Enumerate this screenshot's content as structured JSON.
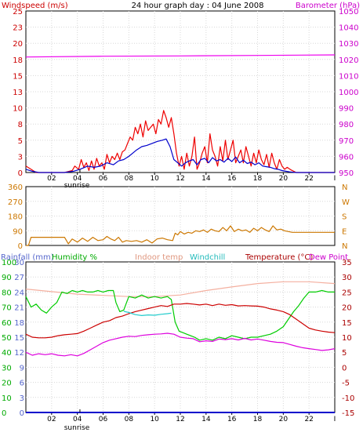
{
  "chart_data": [
    {
      "panel": "wind",
      "type": "line",
      "title": "24 hour graph day : 04 June 2008",
      "left_axis_label": "Windspeed (m/s)",
      "right_axis_label": "Barometer (hPa)",
      "left_ticks": [
        0,
        3,
        5,
        8,
        10,
        13,
        15,
        18,
        20,
        23,
        25
      ],
      "right_ticks": [
        950,
        960,
        970,
        980,
        990,
        1000,
        1010,
        1020,
        1030,
        1040,
        1050
      ],
      "ylim_left": [
        0,
        25
      ],
      "ylim_right": [
        950,
        1050
      ],
      "x_ticks": [
        "02",
        "04",
        "06",
        "08",
        "10",
        "12",
        "14",
        "16",
        "18",
        "20",
        "22"
      ],
      "x_last_tick": "I",
      "xlim": [
        0,
        24
      ],
      "sunrise_label": "sunrise",
      "sunrise_hour": 4.2,
      "series": [
        {
          "key": "gust",
          "color": "#ee0000",
          "x": [
            0,
            0.4,
            0.8,
            2,
            3,
            3.6,
            3.8,
            4.1,
            4.3,
            4.5,
            4.7,
            4.9,
            5.1,
            5.3,
            5.5,
            5.7,
            5.9,
            6.1,
            6.3,
            6.5,
            6.7,
            6.9,
            7.1,
            7.3,
            7.5,
            7.7,
            7.9,
            8.1,
            8.3,
            8.5,
            8.7,
            8.9,
            9.1,
            9.3,
            9.5,
            9.7,
            9.9,
            10.1,
            10.3,
            10.5,
            10.7,
            10.9,
            11.1,
            11.3,
            11.5,
            11.7,
            11.9,
            12.1,
            12.3,
            12.5,
            12.7,
            12.9,
            13.1,
            13.3,
            13.5,
            13.7,
            13.9,
            14.1,
            14.3,
            14.5,
            14.7,
            14.9,
            15.1,
            15.3,
            15.5,
            15.7,
            15.9,
            16.1,
            16.3,
            16.5,
            16.7,
            16.9,
            17.1,
            17.3,
            17.5,
            17.7,
            17.9,
            18.1,
            18.3,
            18.5,
            18.7,
            18.9,
            19.1,
            19.3,
            19.5,
            19.7,
            19.9,
            20.1,
            20.3,
            20.6,
            21,
            22,
            23.5,
            24
          ],
          "y": [
            1,
            0.5,
            0,
            0,
            0,
            0.3,
            1,
            0.5,
            2,
            0.8,
            1.5,
            0.3,
            1.8,
            0.5,
            2.2,
            1,
            1.5,
            0.5,
            2.8,
            1.5,
            2.5,
            2,
            3,
            2,
            3.2,
            3.5,
            4.5,
            5.5,
            5,
            7,
            6,
            7.5,
            5.5,
            8,
            6.5,
            7,
            7.5,
            6,
            8.2,
            7.5,
            9.6,
            8.5,
            7,
            8.5,
            6,
            3,
            1,
            2.5,
            0.5,
            3,
            1,
            2.5,
            5.5,
            0.5,
            1.5,
            3,
            4,
            1.5,
            6,
            3.5,
            2.5,
            1,
            4,
            1.8,
            5,
            2,
            3.5,
            5,
            1.5,
            2.5,
            3.5,
            1.5,
            4,
            2.5,
            1,
            3,
            1.5,
            3.5,
            2,
            1.2,
            2.8,
            0.8,
            3,
            1.5,
            0.5,
            2,
            1,
            0.5,
            0.8,
            0.4,
            0,
            0,
            0,
            0
          ]
        },
        {
          "key": "average",
          "color": "#0000cc",
          "x": [
            0,
            0.5,
            1,
            2,
            3,
            3.7,
            4.2,
            4.8,
            5.3,
            5.8,
            6.3,
            6.8,
            7.2,
            7.6,
            8,
            8.3,
            8.6,
            9,
            9.4,
            9.8,
            10.2,
            10.6,
            10.9,
            11.2,
            11.5,
            11.8,
            12.1,
            12.4,
            12.7,
            13,
            13.3,
            13.6,
            13.9,
            14.2,
            14.5,
            14.8,
            15.1,
            15.4,
            15.7,
            16,
            16.3,
            16.6,
            16.9,
            17.2,
            17.5,
            17.8,
            18.1,
            18.4,
            18.7,
            19,
            19.3,
            19.6,
            19.9,
            20.2,
            20.5,
            21,
            22,
            23.5,
            24
          ],
          "y": [
            0.5,
            0.2,
            0,
            0,
            0,
            0.2,
            0.5,
            1,
            0.8,
            1,
            1.5,
            1.2,
            1.8,
            2,
            2.5,
            3,
            3.5,
            4,
            4.2,
            4.5,
            4.8,
            5,
            5.2,
            4,
            2,
            1.5,
            1,
            1.5,
            1.8,
            2,
            1.2,
            2,
            2.2,
            1.5,
            2.3,
            1.8,
            2,
            1.6,
            2.2,
            1.7,
            2.4,
            1.5,
            1.9,
            1.4,
            1.6,
            1.2,
            1.5,
            1,
            0.9,
            0.8,
            0.6,
            0.5,
            0.3,
            0.2,
            0.1,
            0,
            0,
            0,
            0
          ]
        },
        {
          "key": "barometer",
          "color": "#ee00ee",
          "axis": "right",
          "x": [
            0,
            6,
            12,
            18,
            24
          ],
          "y": [
            1021.5,
            1022,
            1022.2,
            1022.5,
            1022.8
          ]
        }
      ]
    },
    {
      "panel": "direction",
      "type": "line",
      "left_ticks": [
        0,
        90,
        180,
        270,
        360
      ],
      "right_ticks": [
        "N",
        "E",
        "S",
        "W",
        "N"
      ],
      "ylim": [
        0,
        360
      ],
      "series": [
        {
          "key": "direction",
          "color": "#cc7700",
          "x": [
            0,
            0.2,
            0.4,
            3,
            3.3,
            3.6,
            4,
            4.4,
            4.8,
            5.2,
            5.6,
            6,
            6.3,
            6.6,
            6.9,
            7.2,
            7.5,
            7.8,
            8.2,
            8.6,
            9,
            9.4,
            9.8,
            10.2,
            10.6,
            11,
            11.4,
            11.6,
            11.8,
            12,
            12.3,
            12.6,
            12.9,
            13.2,
            13.5,
            13.8,
            14.1,
            14.4,
            14.7,
            15,
            15.3,
            15.6,
            15.9,
            16.2,
            16.5,
            16.8,
            17.1,
            17.4,
            17.7,
            18,
            18.3,
            18.6,
            18.9,
            19.2,
            19.5,
            19.8,
            20.1,
            20.4,
            20.7,
            21,
            22,
            23,
            24
          ],
          "y": [
            0,
            0,
            50,
            50,
            10,
            40,
            20,
            45,
            25,
            50,
            30,
            35,
            55,
            40,
            30,
            50,
            20,
            30,
            25,
            30,
            20,
            35,
            15,
            40,
            45,
            35,
            30,
            75,
            65,
            85,
            70,
            80,
            75,
            90,
            85,
            95,
            80,
            100,
            90,
            85,
            110,
            90,
            120,
            85,
            100,
            90,
            95,
            80,
            105,
            90,
            110,
            95,
            85,
            120,
            95,
            100,
            90,
            85,
            80,
            80,
            80,
            80,
            80
          ]
        }
      ]
    },
    {
      "panel": "multi",
      "type": "line",
      "legend": [
        "Rainfall (mm)",
        "Humidity %",
        "Indoor temp",
        "Windchill",
        "Temperature (°C)",
        "Dew Point"
      ],
      "left_ticks_rain": [
        0,
        3,
        6,
        9,
        12,
        15,
        18,
        21,
        24,
        27,
        30
      ],
      "left_ticks_humidity": [
        0,
        10,
        20,
        30,
        40,
        50,
        60,
        70,
        80,
        90,
        100
      ],
      "right_ticks_temp": [
        -15,
        -10,
        -5,
        0,
        5,
        10,
        15,
        20,
        25,
        30,
        35
      ],
      "ylim_temp": [
        -15,
        35
      ],
      "series": [
        {
          "key": "humidity",
          "axis": "humidity",
          "color": "#00cc00",
          "x": [
            0,
            0.4,
            0.8,
            1.2,
            1.6,
            2,
            2.4,
            2.8,
            3.2,
            3.6,
            4,
            4.4,
            4.8,
            5.2,
            5.6,
            6,
            6.4,
            6.8,
            7,
            7.3,
            7.6,
            8,
            8.5,
            9,
            9.5,
            10,
            10.5,
            11,
            11.3,
            11.6,
            11.9,
            12.2,
            12.5,
            12.8,
            13.1,
            13.5,
            14,
            14.5,
            15,
            15.5,
            16,
            16.5,
            17,
            17.5,
            18,
            18.5,
            19,
            19.5,
            20,
            20.4,
            20.8,
            21.2,
            21.6,
            22,
            22.5,
            23,
            23.5,
            24
          ],
          "y": [
            77,
            70,
            72,
            68,
            66,
            70,
            73,
            80,
            79,
            81,
            80,
            81,
            80,
            80,
            81,
            80,
            81,
            81,
            73,
            67,
            68,
            77,
            76,
            78,
            76,
            77,
            76,
            77,
            75,
            60,
            54,
            53,
            52,
            51,
            50,
            48,
            49,
            48,
            50,
            49,
            51,
            50,
            49,
            50,
            50,
            51,
            52,
            54,
            57,
            62,
            67,
            71,
            76,
            80,
            80,
            81,
            80,
            80
          ]
        },
        {
          "key": "indoor_temp",
          "axis": "temp",
          "color": "#f4b0a0",
          "x": [
            0,
            4,
            8,
            10,
            12,
            14,
            16,
            18,
            20,
            22,
            24
          ],
          "y": [
            26,
            24.3,
            23.5,
            23.5,
            24,
            25.5,
            26.7,
            27.8,
            28.4,
            28.4,
            27.8
          ]
        },
        {
          "key": "windchill",
          "axis": "temp",
          "color": "#22cccc",
          "x": [
            7.6,
            8,
            8.5,
            9,
            9.5,
            10,
            10.5,
            11,
            11.3
          ],
          "y": [
            18.6,
            18.2,
            17.5,
            17.2,
            17.4,
            17.3,
            17.6,
            17.8,
            18
          ]
        },
        {
          "key": "temperature",
          "axis": "temp",
          "color": "#cc0000",
          "x": [
            0,
            0.5,
            1,
            1.5,
            2,
            2.5,
            3,
            3.5,
            4,
            4.5,
            5,
            5.5,
            6,
            6.5,
            7,
            7.5,
            8,
            8.5,
            9,
            9.5,
            10,
            10.5,
            11,
            11.5,
            12,
            12.5,
            13,
            13.5,
            14,
            14.5,
            15,
            15.5,
            16,
            16.5,
            17,
            17.5,
            18,
            18.5,
            19,
            19.5,
            20,
            20.5,
            21,
            21.5,
            22,
            22.5,
            23,
            23.5,
            24
          ],
          "y": [
            11,
            10,
            9.8,
            9.8,
            10,
            10.5,
            10.8,
            11,
            11.2,
            12,
            13,
            14,
            15,
            15.5,
            16.5,
            17,
            17.8,
            18.5,
            19,
            19.5,
            20,
            20.5,
            20.2,
            21,
            21,
            21.2,
            21,
            20.7,
            21,
            20.5,
            21,
            20.6,
            20.8,
            20.4,
            20.5,
            20.4,
            20.3,
            20,
            19.4,
            19,
            18.5,
            17.5,
            16,
            14.5,
            13,
            12.4,
            12,
            11.7,
            11.5
          ]
        },
        {
          "key": "dew_point",
          "axis": "temp",
          "color": "#dd00dd",
          "x": [
            0,
            0.5,
            1,
            1.5,
            2,
            2.5,
            3,
            3.5,
            4,
            4.5,
            5,
            5.5,
            6,
            6.5,
            7,
            7.5,
            8,
            8.5,
            9,
            9.5,
            10,
            10.5,
            11,
            11.5,
            12,
            12.5,
            13,
            13.5,
            14,
            14.5,
            15,
            15.5,
            16,
            16.5,
            17,
            17.5,
            18,
            18.5,
            19,
            19.5,
            20,
            20.5,
            21,
            21.5,
            22,
            22.5,
            23,
            23.5,
            24
          ],
          "y": [
            5,
            4,
            4.5,
            4.2,
            4.5,
            4,
            3.8,
            4.2,
            3.8,
            4.6,
            5.8,
            7,
            8.2,
            9,
            9.5,
            10,
            10.3,
            10.2,
            10.6,
            10.8,
            11,
            11.1,
            11.3,
            11,
            10,
            9.7,
            9.5,
            8.5,
            8.8,
            8.6,
            9.4,
            9.2,
            9.5,
            9.1,
            9.6,
            9.1,
            9.4,
            9,
            8.6,
            8.3,
            8.2,
            7.6,
            7,
            6.5,
            6.2,
            5.9,
            5.6,
            5.8,
            6.2
          ]
        },
        {
          "key": "rainfall",
          "axis": "rain",
          "color": "#0000cc",
          "x": [
            0,
            24
          ],
          "y": [
            0,
            0
          ]
        }
      ]
    }
  ]
}
